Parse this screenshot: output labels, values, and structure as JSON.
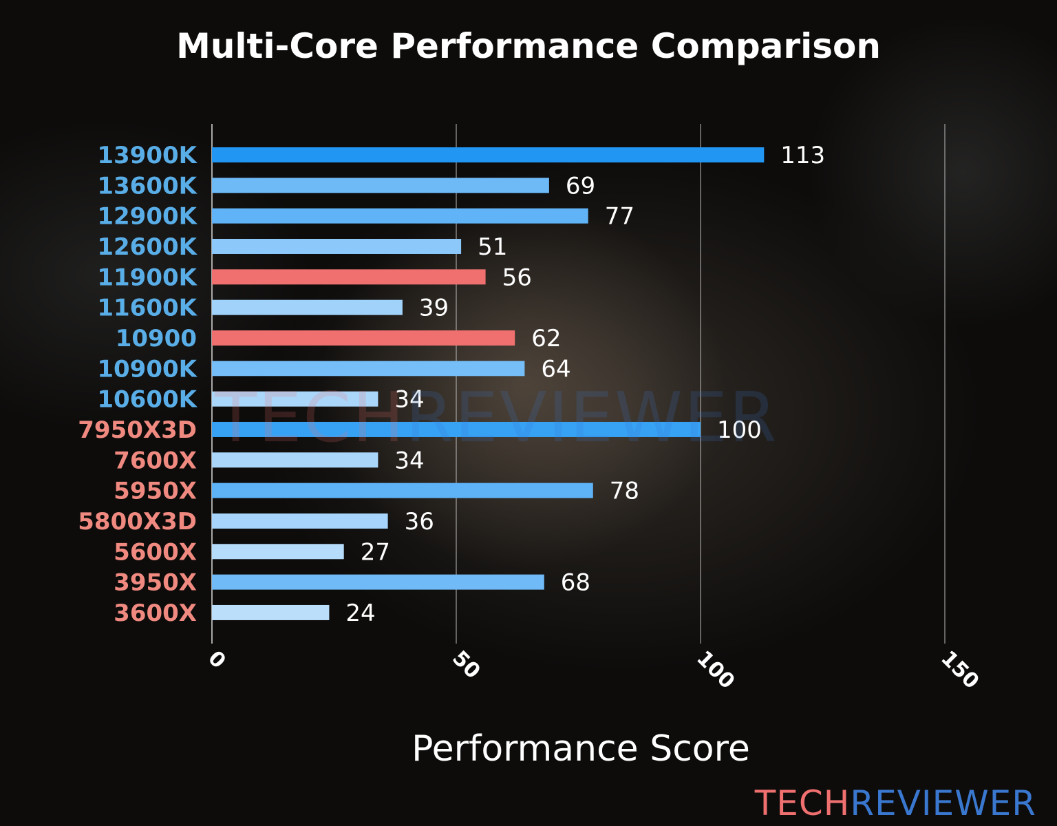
{
  "chart_data": {
    "type": "bar",
    "orientation": "horizontal",
    "title": "Multi-Core Performance Comparison",
    "xlabel": "Performance Score",
    "ylabel": "",
    "xlim": [
      0,
      160
    ],
    "xticks": [
      0,
      50,
      100,
      150
    ],
    "grid": "vertical",
    "categories": [
      "13900K",
      "13600K",
      "12900K",
      "12600K",
      "11900K",
      "11600K",
      "10900",
      "10900K",
      "10600K",
      "7950X3D",
      "7600X",
      "5950X",
      "5800X3D",
      "5600X",
      "3950X",
      "3600X"
    ],
    "values": [
      113,
      69,
      77,
      51,
      56,
      39,
      62,
      64,
      34,
      100,
      34,
      78,
      36,
      27,
      68,
      24
    ],
    "highlighted": [
      "11900K",
      "10900"
    ],
    "label_colors": {
      "intel": "#5aaee8",
      "amd": "#f08a80"
    },
    "amd_categories": [
      "7950X3D",
      "7600X",
      "5950X",
      "5800X3D",
      "5600X",
      "3950X",
      "3600X"
    ],
    "colors": {
      "bar_high": "#2196f3",
      "bar_low": "#bbdefb",
      "highlight": "#f07070",
      "text": "#ffffff"
    }
  },
  "watermark": {
    "part1": "TECH",
    "part2": "REVIEWER",
    "color1": "#f07070",
    "color2": "#3a78d0"
  }
}
